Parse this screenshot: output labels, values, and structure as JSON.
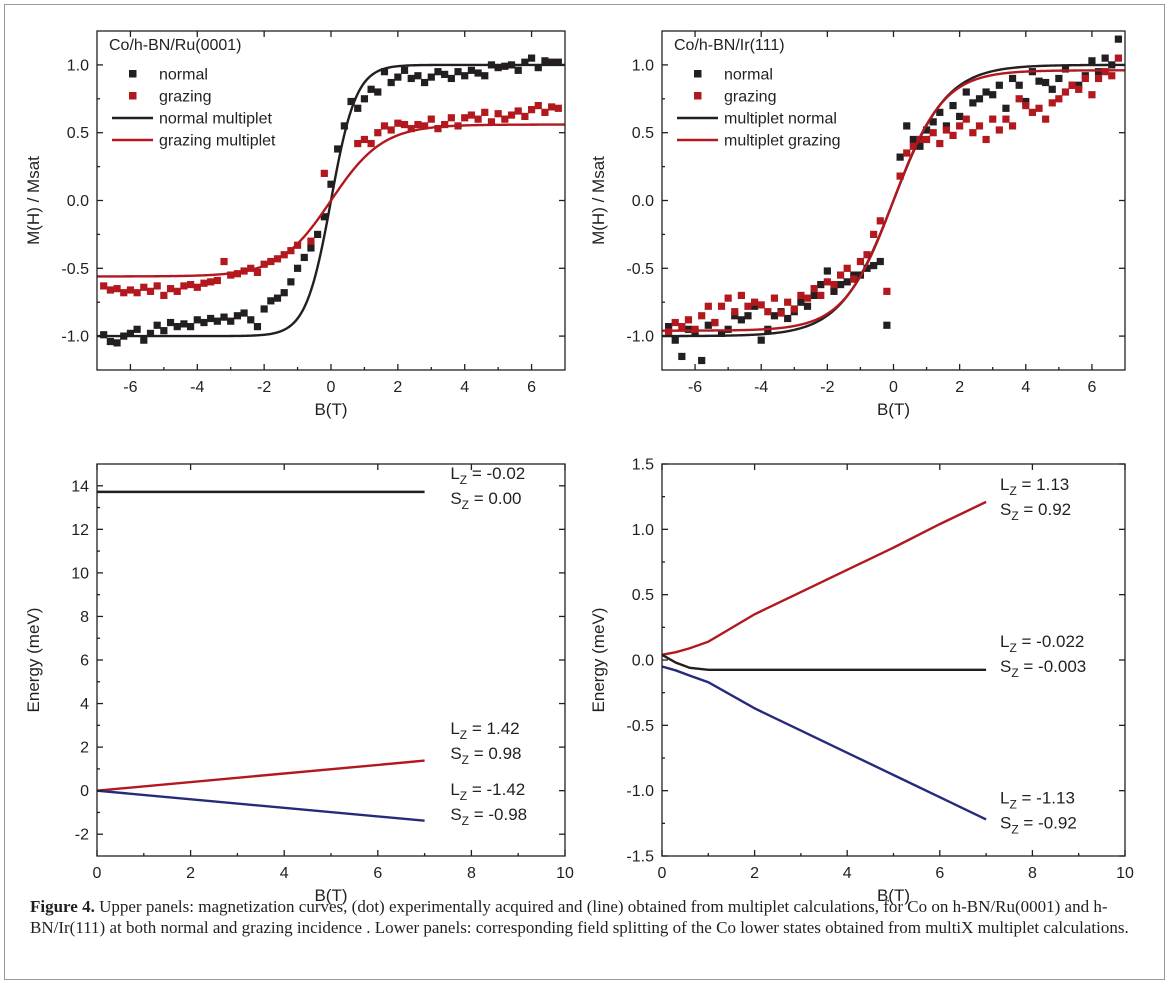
{
  "colors": {
    "black": "#231f20",
    "red": "#b2181e",
    "navy": "#262a7a"
  },
  "caption": {
    "label": "Figure 4.",
    "text": " Upper panels: magnetization curves, (dot) experimentally acquired and (line) obtained from multiplet calculations, for Co on h-BN/Ru(0001) and h-BN/Ir(111) at both normal and grazing incidence . Lower panels: corresponding field splitting of the Co lower states obtained from multiX multiplet calculations."
  },
  "chart_data": [
    {
      "type": "scatter",
      "title": "Co/h-BN/Ru(0001)",
      "xlabel": "B(T)",
      "ylabel": "M(H) / Msat",
      "xlim": [
        -7,
        7
      ],
      "ylim": [
        -1.25,
        1.25
      ],
      "xticks": [
        -6,
        -4,
        -2,
        0,
        2,
        4,
        6
      ],
      "yticks": [
        -1.0,
        -0.5,
        0.0,
        0.5,
        1.0
      ],
      "ytick_format": "1dec",
      "legend": "top-left",
      "grid": false,
      "series": [
        {
          "name": "normal",
          "kind": "points",
          "color": "#231f20",
          "x": [
            -6.8,
            -6.6,
            -6.4,
            -6.2,
            -6.0,
            -5.8,
            -5.6,
            -5.4,
            -5.2,
            -5.0,
            -4.8,
            -4.6,
            -4.4,
            -4.2,
            -4.0,
            -3.8,
            -3.6,
            -3.4,
            -3.2,
            -3.0,
            -2.8,
            -2.6,
            -2.4,
            -2.2,
            -2.0,
            -1.8,
            -1.6,
            -1.4,
            -1.2,
            -1.0,
            -0.8,
            -0.6,
            -0.4,
            -0.2,
            0.0,
            0.2,
            0.4,
            0.6,
            0.8,
            1.0,
            1.2,
            1.4,
            1.6,
            1.8,
            2.0,
            2.2,
            2.4,
            2.6,
            2.8,
            3.0,
            3.2,
            3.4,
            3.6,
            3.8,
            4.0,
            4.2,
            4.4,
            4.6,
            4.8,
            5.0,
            5.2,
            5.4,
            5.6,
            5.8,
            6.0,
            6.2,
            6.4,
            6.6,
            6.8
          ],
          "y": [
            -0.99,
            -1.04,
            -1.05,
            -1.0,
            -0.98,
            -0.95,
            -1.03,
            -0.98,
            -0.92,
            -0.96,
            -0.9,
            -0.93,
            -0.91,
            -0.93,
            -0.88,
            -0.9,
            -0.87,
            -0.89,
            -0.86,
            -0.89,
            -0.85,
            -0.83,
            -0.88,
            -0.93,
            -0.8,
            -0.74,
            -0.72,
            -0.68,
            -0.6,
            -0.5,
            -0.42,
            -0.35,
            -0.25,
            -0.12,
            0.12,
            0.38,
            0.55,
            0.73,
            0.68,
            0.75,
            0.82,
            0.8,
            0.95,
            0.87,
            0.91,
            0.96,
            0.9,
            0.92,
            0.87,
            0.91,
            0.95,
            0.93,
            0.9,
            0.95,
            0.92,
            0.96,
            0.94,
            0.92,
            1.0,
            0.98,
            0.99,
            1.0,
            0.96,
            1.02,
            1.05,
            0.98,
            1.03,
            1.02,
            1.02
          ]
        },
        {
          "name": "grazing",
          "kind": "points",
          "color": "#b2181e",
          "x": [
            -6.8,
            -6.6,
            -6.4,
            -6.2,
            -6.0,
            -5.8,
            -5.6,
            -5.4,
            -5.2,
            -5.0,
            -4.8,
            -4.6,
            -4.4,
            -4.2,
            -4.0,
            -3.8,
            -3.6,
            -3.4,
            -3.2,
            -3.0,
            -2.8,
            -2.6,
            -2.4,
            -2.2,
            -2.0,
            -1.8,
            -1.6,
            -1.4,
            -1.2,
            -1.0,
            -0.6,
            -0.2,
            0.8,
            1.0,
            1.2,
            1.4,
            1.6,
            1.8,
            2.0,
            2.2,
            2.4,
            2.6,
            2.8,
            3.0,
            3.2,
            3.4,
            3.6,
            3.8,
            4.0,
            4.2,
            4.4,
            4.6,
            4.8,
            5.0,
            5.2,
            5.4,
            5.6,
            5.8,
            6.0,
            6.2,
            6.4,
            6.6,
            6.8
          ],
          "y": [
            -0.63,
            -0.66,
            -0.65,
            -0.68,
            -0.66,
            -0.68,
            -0.64,
            -0.67,
            -0.63,
            -0.7,
            -0.65,
            -0.67,
            -0.63,
            -0.62,
            -0.64,
            -0.61,
            -0.6,
            -0.59,
            -0.45,
            -0.55,
            -0.54,
            -0.52,
            -0.5,
            -0.53,
            -0.47,
            -0.45,
            -0.43,
            -0.4,
            -0.37,
            -0.33,
            -0.3,
            0.2,
            0.42,
            0.45,
            0.42,
            0.5,
            0.55,
            0.52,
            0.57,
            0.56,
            0.53,
            0.56,
            0.55,
            0.6,
            0.53,
            0.56,
            0.61,
            0.55,
            0.61,
            0.63,
            0.6,
            0.65,
            0.58,
            0.64,
            0.6,
            0.63,
            0.66,
            0.62,
            0.67,
            0.7,
            0.65,
            0.69,
            0.68
          ]
        },
        {
          "name": "normal multiplet",
          "kind": "line",
          "color": "#231f20",
          "func": "tanh",
          "amp": 1.0,
          "scale": 0.75
        },
        {
          "name": "grazing multiplet",
          "kind": "line",
          "color": "#b2181e",
          "func": "tanh",
          "amp": 0.56,
          "scale": 1.55
        }
      ]
    },
    {
      "type": "scatter",
      "title": "Co/h-BN/Ir(111)",
      "xlabel": "B(T)",
      "ylabel": "M(H) / Msat",
      "xlim": [
        -7,
        7
      ],
      "ylim": [
        -1.25,
        1.25
      ],
      "xticks": [
        -6,
        -4,
        -2,
        0,
        2,
        4,
        6
      ],
      "yticks": [
        -1.0,
        -0.5,
        0.0,
        0.5,
        1.0
      ],
      "ytick_format": "1dec",
      "legend": "top-left",
      "grid": false,
      "series": [
        {
          "name": "normal",
          "kind": "points",
          "color": "#231f20",
          "x": [
            -6.8,
            -6.6,
            -6.4,
            -6.2,
            -6.0,
            -5.8,
            -5.6,
            -5.4,
            -5.2,
            -5.0,
            -4.8,
            -4.6,
            -4.4,
            -4.2,
            -4.0,
            -3.8,
            -3.6,
            -3.4,
            -3.2,
            -3.0,
            -2.8,
            -2.6,
            -2.4,
            -2.2,
            -2.0,
            -1.8,
            -1.6,
            -1.4,
            -1.2,
            -1.0,
            -0.8,
            -0.6,
            -0.4,
            -0.2,
            0.2,
            0.4,
            0.6,
            0.8,
            1.0,
            1.2,
            1.4,
            1.6,
            1.8,
            2.0,
            2.2,
            2.4,
            2.6,
            2.8,
            3.0,
            3.2,
            3.4,
            3.6,
            3.8,
            4.0,
            4.2,
            4.4,
            4.6,
            4.8,
            5.0,
            5.2,
            5.4,
            5.6,
            5.8,
            6.0,
            6.2,
            6.4,
            6.6,
            6.8
          ],
          "y": [
            -0.93,
            -1.03,
            -1.15,
            -0.95,
            -0.97,
            -1.18,
            -0.92,
            -0.9,
            -0.98,
            -0.95,
            -0.85,
            -0.88,
            -0.85,
            -0.78,
            -1.03,
            -0.95,
            -0.85,
            -0.82,
            -0.87,
            -0.82,
            -0.75,
            -0.78,
            -0.7,
            -0.62,
            -0.52,
            -0.67,
            -0.62,
            -0.6,
            -0.55,
            -0.55,
            -0.5,
            -0.48,
            -0.45,
            -0.92,
            0.32,
            0.55,
            0.45,
            0.4,
            0.52,
            0.58,
            0.65,
            0.55,
            0.7,
            0.62,
            0.8,
            0.72,
            0.75,
            0.8,
            0.78,
            0.85,
            0.68,
            0.9,
            0.85,
            0.73,
            0.95,
            0.88,
            0.87,
            0.82,
            0.9,
            0.97,
            0.85,
            0.85,
            0.92,
            1.03,
            0.95,
            1.05,
            1.0,
            1.19
          ]
        },
        {
          "name": "grazing",
          "kind": "points",
          "color": "#b2181e",
          "x": [
            -6.8,
            -6.6,
            -6.4,
            -6.2,
            -6.0,
            -5.8,
            -5.6,
            -5.4,
            -5.2,
            -5.0,
            -4.8,
            -4.6,
            -4.4,
            -4.2,
            -4.0,
            -3.8,
            -3.6,
            -3.4,
            -3.2,
            -3.0,
            -2.8,
            -2.6,
            -2.4,
            -2.2,
            -2.0,
            -1.8,
            -1.6,
            -1.4,
            -1.2,
            -1.0,
            -0.8,
            -0.6,
            -0.4,
            -0.2,
            0.2,
            0.4,
            0.6,
            0.8,
            1.0,
            1.2,
            1.4,
            1.6,
            1.8,
            2.0,
            2.2,
            2.4,
            2.6,
            2.8,
            3.0,
            3.2,
            3.4,
            3.6,
            3.8,
            4.0,
            4.2,
            4.4,
            4.6,
            4.8,
            5.0,
            5.2,
            5.4,
            5.6,
            5.8,
            6.0,
            6.2,
            6.4,
            6.6,
            6.8
          ],
          "y": [
            -0.97,
            -0.9,
            -0.93,
            -0.88,
            -0.95,
            -0.85,
            -0.78,
            -0.9,
            -0.78,
            -0.72,
            -0.82,
            -0.7,
            -0.78,
            -0.75,
            -0.77,
            -0.82,
            -0.72,
            -0.83,
            -0.75,
            -0.8,
            -0.7,
            -0.72,
            -0.65,
            -0.7,
            -0.6,
            -0.62,
            -0.55,
            -0.5,
            -0.58,
            -0.45,
            -0.4,
            -0.25,
            -0.15,
            -0.67,
            0.18,
            0.35,
            0.4,
            0.45,
            0.45,
            0.5,
            0.42,
            0.52,
            0.48,
            0.55,
            0.6,
            0.5,
            0.55,
            0.45,
            0.6,
            0.52,
            0.6,
            0.55,
            0.75,
            0.7,
            0.65,
            0.68,
            0.6,
            0.72,
            0.75,
            0.8,
            0.85,
            0.82,
            0.9,
            0.78,
            0.9,
            0.95,
            0.92,
            1.05
          ]
        },
        {
          "name": "multiplet normal",
          "kind": "line",
          "color": "#231f20",
          "func": "tanh",
          "amp": 1.0,
          "scale": 1.6
        },
        {
          "name": "multiplet grazing",
          "kind": "line",
          "color": "#b2181e",
          "func": "tanh",
          "amp": 0.96,
          "scale": 1.5
        }
      ]
    },
    {
      "type": "line",
      "title": "",
      "xlabel": "B(T)",
      "ylabel": "Energy (meV)",
      "xlim": [
        0,
        10
      ],
      "ylim": [
        -3,
        15
      ],
      "xticks": [
        0,
        2,
        4,
        6,
        8,
        10
      ],
      "yticks": [
        -2,
        0,
        2,
        4,
        6,
        8,
        10,
        12,
        14
      ],
      "ytick_format": "int",
      "grid": false,
      "series": [
        {
          "kind": "line",
          "color": "#231f20",
          "x": [
            0,
            7
          ],
          "y": [
            13.72,
            13.72
          ]
        },
        {
          "kind": "line",
          "color": "#b2181e",
          "x": [
            0,
            7
          ],
          "y": [
            0.0,
            1.38
          ]
        },
        {
          "kind": "line",
          "color": "#262a7a",
          "x": [
            0,
            7
          ],
          "y": [
            0.0,
            -1.38
          ]
        }
      ],
      "annotations": [
        {
          "lz": "-0.02",
          "sz": "0.00",
          "at": [
            7.55,
            14.3
          ]
        },
        {
          "lz": "1.42",
          "sz": "0.98",
          "at": [
            7.55,
            2.6
          ]
        },
        {
          "lz": "-1.42",
          "sz": "-0.98",
          "at": [
            7.55,
            -0.2
          ]
        }
      ]
    },
    {
      "type": "line",
      "title": "",
      "xlabel": "B(T)",
      "ylabel": "Energy (meV)",
      "xlim": [
        0,
        10
      ],
      "ylim": [
        -1.5,
        1.5
      ],
      "xticks": [
        0,
        2,
        4,
        6,
        8,
        10
      ],
      "yticks": [
        -1.5,
        -1.0,
        -0.5,
        0.0,
        0.5,
        1.0,
        1.5
      ],
      "ytick_format": "1dec",
      "grid": false,
      "series": [
        {
          "kind": "line",
          "color": "#b2181e",
          "x": [
            0,
            0.3,
            0.6,
            1.0,
            2,
            3,
            4,
            5,
            6,
            7
          ],
          "y": [
            0.04,
            0.06,
            0.09,
            0.14,
            0.35,
            0.52,
            0.69,
            0.86,
            1.04,
            1.21
          ]
        },
        {
          "kind": "line",
          "color": "#231f20",
          "x": [
            0,
            0.3,
            0.6,
            1.0,
            2,
            3,
            4,
            5,
            6,
            7
          ],
          "y": [
            0.04,
            -0.02,
            -0.06,
            -0.075,
            -0.075,
            -0.075,
            -0.075,
            -0.075,
            -0.075,
            -0.075
          ]
        },
        {
          "kind": "line",
          "color": "#262a7a",
          "x": [
            0,
            0.3,
            0.6,
            1.0,
            2,
            3,
            4,
            5,
            6,
            7
          ],
          "y": [
            -0.05,
            -0.08,
            -0.12,
            -0.17,
            -0.37,
            -0.54,
            -0.71,
            -0.88,
            -1.05,
            -1.22
          ]
        }
      ],
      "annotations": [
        {
          "lz": "1.13",
          "sz": "0.92",
          "at": [
            7.3,
            1.3
          ]
        },
        {
          "lz": "-0.022",
          "sz": "-0.003",
          "at": [
            7.3,
            0.1
          ]
        },
        {
          "lz": "-1.13",
          "sz": "-0.92",
          "at": [
            7.3,
            -1.1
          ]
        }
      ]
    }
  ]
}
